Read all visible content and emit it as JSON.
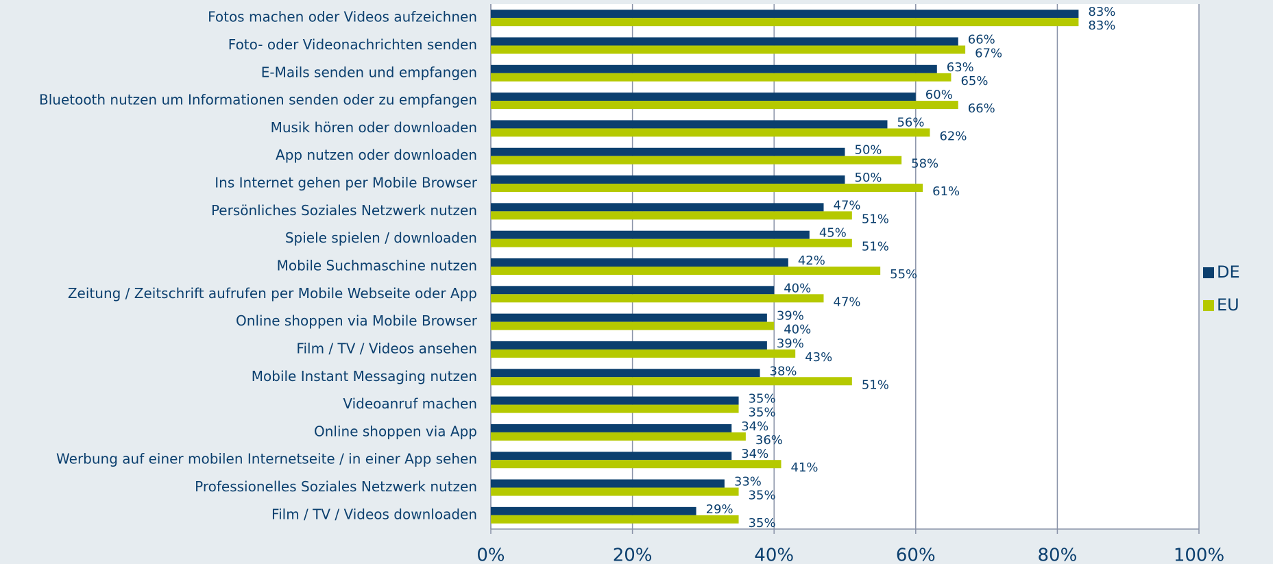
{
  "chart_data": {
    "type": "barh",
    "categories": [
      "Fotos machen oder Videos aufzeichnen",
      "Foto- oder Videonachrichten senden",
      "E-Mails senden und empfangen",
      "Bluetooth nutzen um Informationen senden oder zu empfangen",
      "Musik hören oder downloaden",
      "App nutzen oder downloaden",
      "Ins Internet gehen per Mobile Browser ",
      "Persönliches Soziales Netzwerk nutzen",
      "Spiele spielen / downloaden",
      "Mobile Suchmaschine nutzen",
      "Zeitung / Zeitschrift aufrufen per Mobile Webseite oder App",
      "Online shoppen via Mobile Browser",
      "Film / TV / Videos ansehen",
      "Mobile Instant Messaging nutzen",
      "Videoanruf machen",
      "Online shoppen via App",
      "Werbung auf einer mobilen Internetseite / in einer App sehen",
      "Professionelles Soziales Netzwerk nutzen",
      "Film / TV / Videos downloaden"
    ],
    "series": [
      {
        "name": "DE",
        "color": "#0b3f6e",
        "values": [
          83,
          66,
          63,
          60,
          56,
          50,
          50,
          47,
          45,
          42,
          40,
          39,
          39,
          38,
          35,
          34,
          34,
          33,
          29
        ],
        "value_labels": [
          "83%",
          "66%",
          "63%",
          "60%",
          "56%",
          "50%",
          "50%",
          "47%",
          "45%",
          "42%",
          "40%",
          "39%",
          "39%",
          "38%",
          "35%",
          "34%",
          "34%",
          "33%",
          "29%"
        ]
      },
      {
        "name": "EU",
        "color": "#b5c900",
        "values": [
          83,
          67,
          65,
          66,
          62,
          58,
          61,
          51,
          51,
          55,
          47,
          40,
          43,
          51,
          35,
          36,
          41,
          35,
          35
        ],
        "value_labels": [
          "83%",
          "67%",
          "65%",
          "66%",
          "62%",
          "58%",
          "61%",
          "51%",
          "51%",
          "55%",
          "47%",
          "40%",
          "43%",
          "51%",
          "35%",
          "36%",
          "41%",
          "35%",
          "35%"
        ]
      }
    ],
    "xlim": [
      0,
      100
    ],
    "xticks": [
      {
        "value": 0,
        "label": "0%"
      },
      {
        "value": 20,
        "label": "20%"
      },
      {
        "value": 40,
        "label": "40%"
      },
      {
        "value": 60,
        "label": "60%"
      },
      {
        "value": 80,
        "label": "80%"
      },
      {
        "value": 100,
        "label": "100%"
      }
    ],
    "grid": true,
    "legend": "right"
  }
}
